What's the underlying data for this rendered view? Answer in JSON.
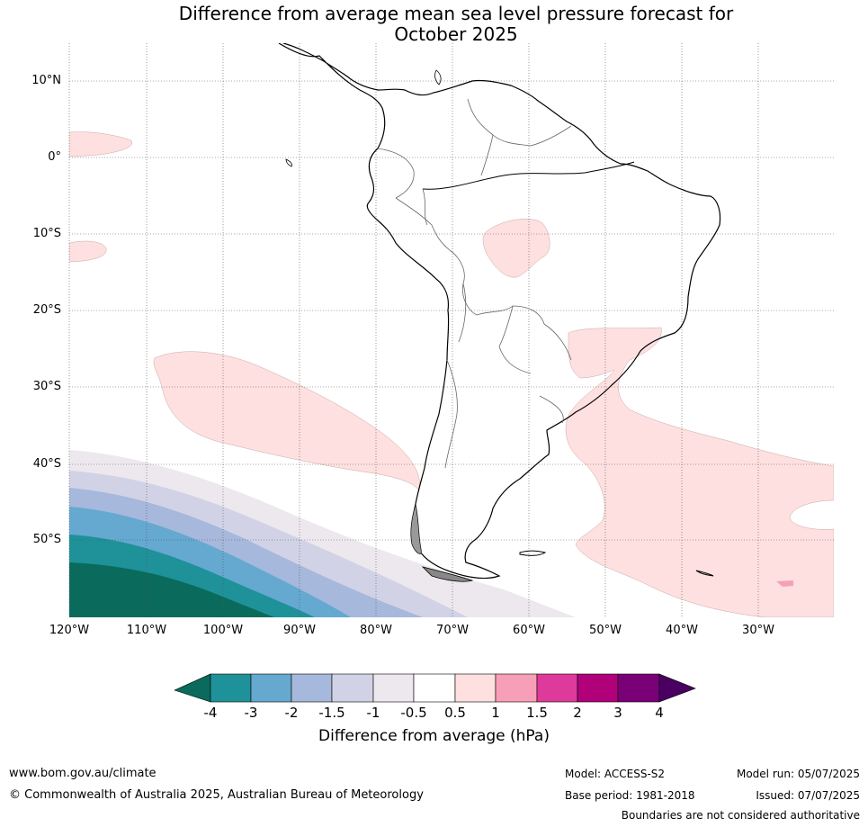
{
  "title_line1": "Difference from average mean sea level pressure forecast for",
  "title_line2": "October 2025",
  "map": {
    "region": "South America",
    "lat_labels": [
      "10°N",
      "0°",
      "10°S",
      "20°S",
      "30°S",
      "40°S",
      "50°S"
    ],
    "lon_labels": [
      "120°W",
      "110°W",
      "100°W",
      "90°W",
      "80°W",
      "70°W",
      "60°W",
      "50°W",
      "40°W",
      "30°W"
    ],
    "anomaly_regions": [
      {
        "location": "Equatorial Pacific near 0°",
        "category": "0.5 to 1"
      },
      {
        "location": "Eastern Pacific near 12°S",
        "category": "0.5 to 1"
      },
      {
        "location": "Central Bolivia / Brazil",
        "category": "0.5 to 1"
      },
      {
        "location": "Southeast Pacific off Chile",
        "category": "0.5 to 1"
      },
      {
        "location": "South Atlantic",
        "category": "0.5 to 1"
      },
      {
        "location": "Southeast Pacific, far southwest",
        "category": "-4 and below"
      }
    ]
  },
  "colorbar": {
    "ticks": [
      "-4",
      "-3",
      "-2",
      "-1.5",
      "-1",
      "-0.5",
      "0.5",
      "1",
      "1.5",
      "2",
      "3",
      "4"
    ],
    "colors": [
      "#0a6b5c",
      "#1f9199",
      "#65a8d0",
      "#a6b8db",
      "#d2d2e6",
      "#ede8ee",
      "#ffffff",
      "#fde0df",
      "#f79fb8",
      "#de3a9b",
      "#b0007a",
      "#7a0077",
      "#4a0062"
    ],
    "label": "Difference from average (hPa)"
  },
  "footer": {
    "website": "www.bom.gov.au/climate",
    "copyright": "© Commonwealth of Australia 2025, Australian Bureau of Meteorology",
    "model": "Model: ACCESS-S2",
    "base_period": "Base period: 1981-2018",
    "model_run": "Model run: 05/07/2025",
    "issued": "Issued: 07/07/2025",
    "disclaimer": "Boundaries are not considered authoritative"
  }
}
